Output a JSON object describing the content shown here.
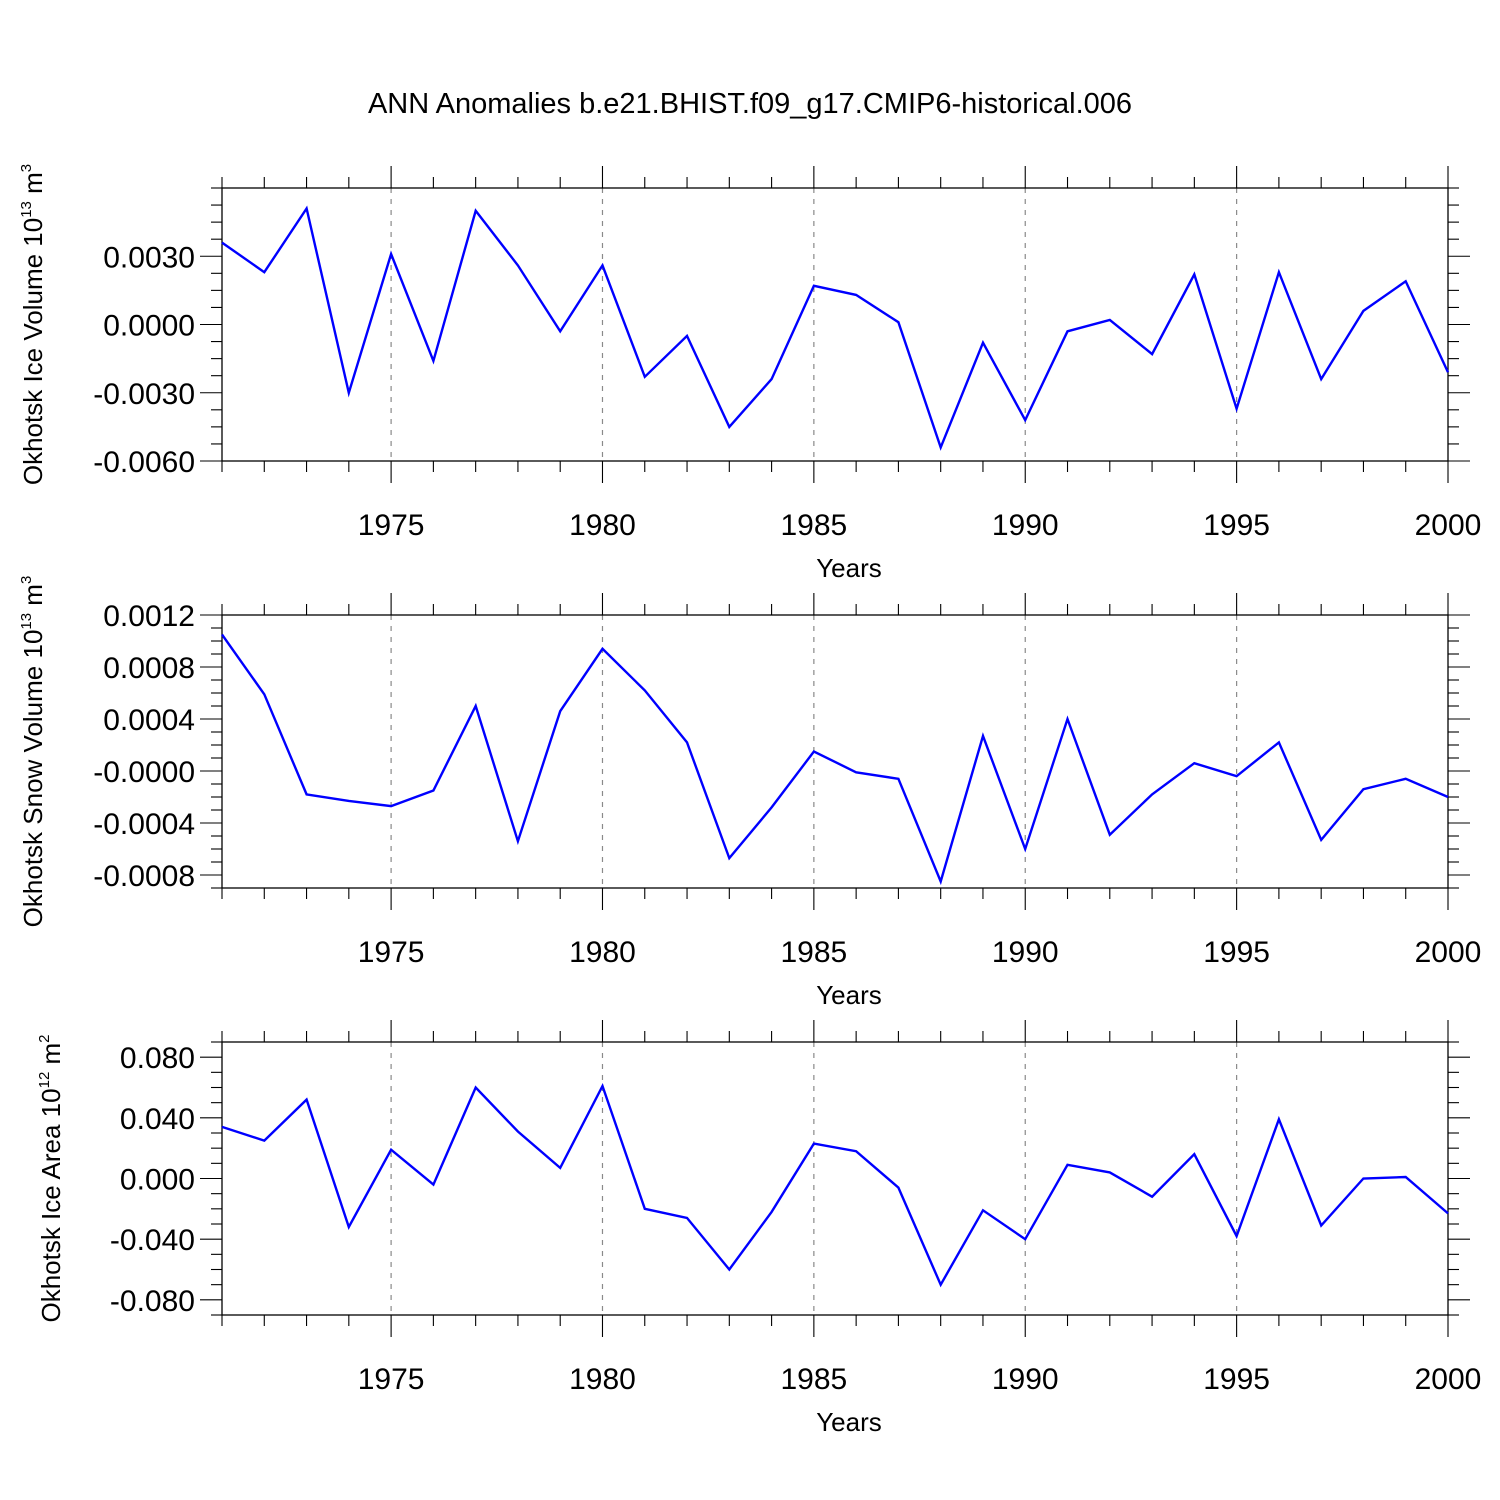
{
  "title": "ANN Anomalies b.e21.BHIST.f09_g17.CMIP6-historical.006",
  "colors": {
    "series": "#0000ff",
    "grid": "#8a8a8a",
    "axis": "#000000"
  },
  "chart_data": [
    {
      "type": "line",
      "ylabel": {
        "text": "Okhotsk Ice Volume 10",
        "exp": "13",
        "unit": " m",
        "unit_exp": "3"
      },
      "xlabel": "Years",
      "xlim": [
        1971,
        2000
      ],
      "ylim": [
        -0.006,
        0.006
      ],
      "yticks": [
        -0.006,
        -0.003,
        0.0,
        0.003
      ],
      "ytick_labels": [
        "-0.0060",
        "-0.0030",
        "0.0000",
        "0.0030"
      ],
      "xticks": [
        1975,
        1980,
        1985,
        1990,
        1995,
        2000
      ],
      "xtick_labels": [
        "1975",
        "1980",
        "1985",
        "1990",
        "1995",
        "2000"
      ],
      "grid": "vertical dashed at major x ticks",
      "x": [
        1971,
        1972,
        1973,
        1974,
        1975,
        1976,
        1977,
        1978,
        1979,
        1980,
        1981,
        1982,
        1983,
        1984,
        1985,
        1986,
        1987,
        1988,
        1989,
        1990,
        1991,
        1992,
        1993,
        1994,
        1995,
        1996,
        1997,
        1998,
        1999,
        2000
      ],
      "values": [
        0.0036,
        0.0023,
        0.0051,
        -0.003,
        0.0031,
        -0.0016,
        0.005,
        0.0026,
        -0.0003,
        0.0026,
        -0.0023,
        -0.0005,
        -0.0045,
        -0.0024,
        0.0017,
        0.0013,
        0.0001,
        -0.0054,
        -0.0008,
        -0.0042,
        -0.0003,
        0.0002,
        -0.0013,
        0.0022,
        -0.0037,
        0.0023,
        -0.0024,
        0.0006,
        0.0019,
        -0.0021
      ]
    },
    {
      "type": "line",
      "ylabel": {
        "text": "Okhotsk Snow Volume 10",
        "exp": "13",
        "unit": " m",
        "unit_exp": "3"
      },
      "xlabel": "Years",
      "xlim": [
        1971,
        2000
      ],
      "ylim": [
        -0.0009,
        0.0012
      ],
      "yticks": [
        -0.0008,
        -0.0004,
        0.0,
        0.0004,
        0.0008,
        0.0012
      ],
      "ytick_labels": [
        "-0.0008",
        "-0.0004",
        "-0.0000",
        "0.0004",
        "0.0008",
        "0.0012"
      ],
      "xticks": [
        1975,
        1980,
        1985,
        1990,
        1995,
        2000
      ],
      "xtick_labels": [
        "1975",
        "1980",
        "1985",
        "1990",
        "1995",
        "2000"
      ],
      "grid": "vertical dashed at major x ticks",
      "x": [
        1971,
        1972,
        1973,
        1974,
        1975,
        1976,
        1977,
        1978,
        1979,
        1980,
        1981,
        1982,
        1983,
        1984,
        1985,
        1986,
        1987,
        1988,
        1989,
        1990,
        1991,
        1992,
        1993,
        1994,
        1995,
        1996,
        1997,
        1998,
        1999,
        2000
      ],
      "values": [
        0.00105,
        0.00059,
        -0.00018,
        -0.00023,
        -0.00027,
        -0.00015,
        0.0005,
        -0.00054,
        0.00046,
        0.00094,
        0.00062,
        0.00022,
        -0.00067,
        -0.00028,
        0.00015,
        -1e-05,
        -6e-05,
        -0.00085,
        0.00027,
        -0.0006,
        0.0004,
        -0.00049,
        -0.00018,
        6e-05,
        -4e-05,
        0.00022,
        -0.00053,
        -0.00014,
        -6e-05,
        -0.0002
      ]
    },
    {
      "type": "line",
      "ylabel": {
        "text": "Okhotsk Ice Area 10",
        "exp": "12",
        "unit": " m",
        "unit_exp": "2"
      },
      "xlabel": "Years",
      "xlim": [
        1971,
        2000
      ],
      "ylim": [
        -0.09,
        0.09
      ],
      "yticks": [
        -0.08,
        -0.04,
        0.0,
        0.04,
        0.08
      ],
      "ytick_labels": [
        "-0.080",
        "-0.040",
        "0.000",
        "0.040",
        "0.080"
      ],
      "xticks": [
        1975,
        1980,
        1985,
        1990,
        1995,
        2000
      ],
      "xtick_labels": [
        "1975",
        "1980",
        "1985",
        "1990",
        "1995",
        "2000"
      ],
      "grid": "vertical dashed at major x ticks",
      "x": [
        1971,
        1972,
        1973,
        1974,
        1975,
        1976,
        1977,
        1978,
        1979,
        1980,
        1981,
        1982,
        1983,
        1984,
        1985,
        1986,
        1987,
        1988,
        1989,
        1990,
        1991,
        1992,
        1993,
        1994,
        1995,
        1996,
        1997,
        1998,
        1999,
        2000
      ],
      "values": [
        0.034,
        0.025,
        0.052,
        -0.032,
        0.019,
        -0.004,
        0.06,
        0.031,
        0.007,
        0.061,
        -0.02,
        -0.026,
        -0.06,
        -0.022,
        0.023,
        0.018,
        -0.006,
        -0.07,
        -0.021,
        -0.04,
        0.009,
        0.004,
        -0.012,
        0.016,
        -0.038,
        0.039,
        -0.031,
        0.0,
        0.001,
        -0.023
      ]
    }
  ]
}
